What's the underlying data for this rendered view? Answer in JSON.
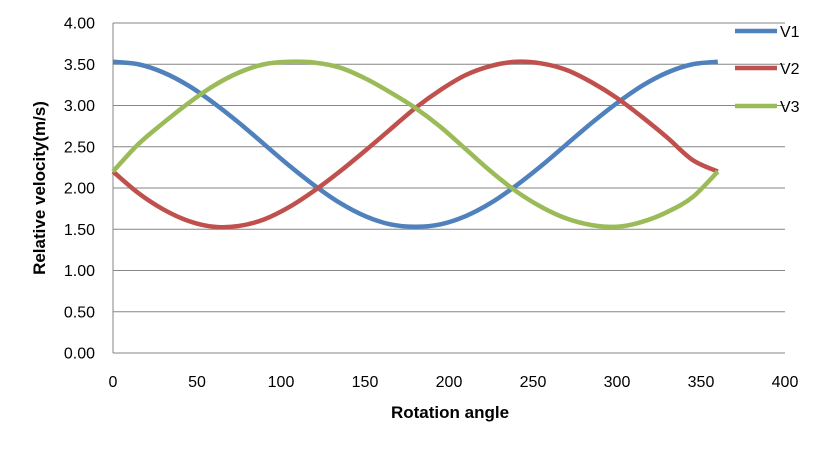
{
  "chart_data": {
    "type": "line",
    "title": "",
    "xlabel": "Rotation angle",
    "ylabel": "Relative velocity(m/s)",
    "xlim": [
      0,
      400
    ],
    "ylim": [
      0,
      4
    ],
    "xticks": [
      0,
      50,
      100,
      150,
      200,
      250,
      300,
      350,
      400
    ],
    "yticks": [
      "0.00",
      "0.50",
      "1.00",
      "1.50",
      "2.00",
      "2.50",
      "3.00",
      "3.50",
      "4.00"
    ],
    "grid": true,
    "legend_position": "right",
    "x": [
      0,
      15,
      30,
      45,
      60,
      75,
      90,
      105,
      120,
      135,
      150,
      165,
      180,
      195,
      210,
      225,
      240,
      255,
      270,
      285,
      300,
      315,
      330,
      345,
      360
    ],
    "series": [
      {
        "name": "V1",
        "color": "#4F81BD",
        "values": [
          3.53,
          3.5,
          3.4,
          3.24,
          3.03,
          2.79,
          2.53,
          2.27,
          2.03,
          1.82,
          1.66,
          1.56,
          1.53,
          1.56,
          1.66,
          1.82,
          2.03,
          2.27,
          2.53,
          2.79,
          3.03,
          3.24,
          3.4,
          3.5,
          3.53
        ]
      },
      {
        "name": "V2",
        "color": "#C0504D",
        "values": [
          2.2,
          1.94,
          1.74,
          1.6,
          1.53,
          1.54,
          1.62,
          1.77,
          1.97,
          2.2,
          2.45,
          2.71,
          2.97,
          3.19,
          3.37,
          3.48,
          3.53,
          3.51,
          3.43,
          3.28,
          3.09,
          2.86,
          2.61,
          2.34,
          2.2
        ]
      },
      {
        "name": "V3",
        "color": "#9BBB59",
        "values": [
          2.2,
          2.53,
          2.79,
          3.03,
          3.24,
          3.4,
          3.5,
          3.53,
          3.52,
          3.46,
          3.33,
          3.16,
          2.97,
          2.74,
          2.47,
          2.2,
          1.96,
          1.77,
          1.63,
          1.55,
          1.53,
          1.59,
          1.71,
          1.89,
          2.2
        ]
      }
    ]
  }
}
